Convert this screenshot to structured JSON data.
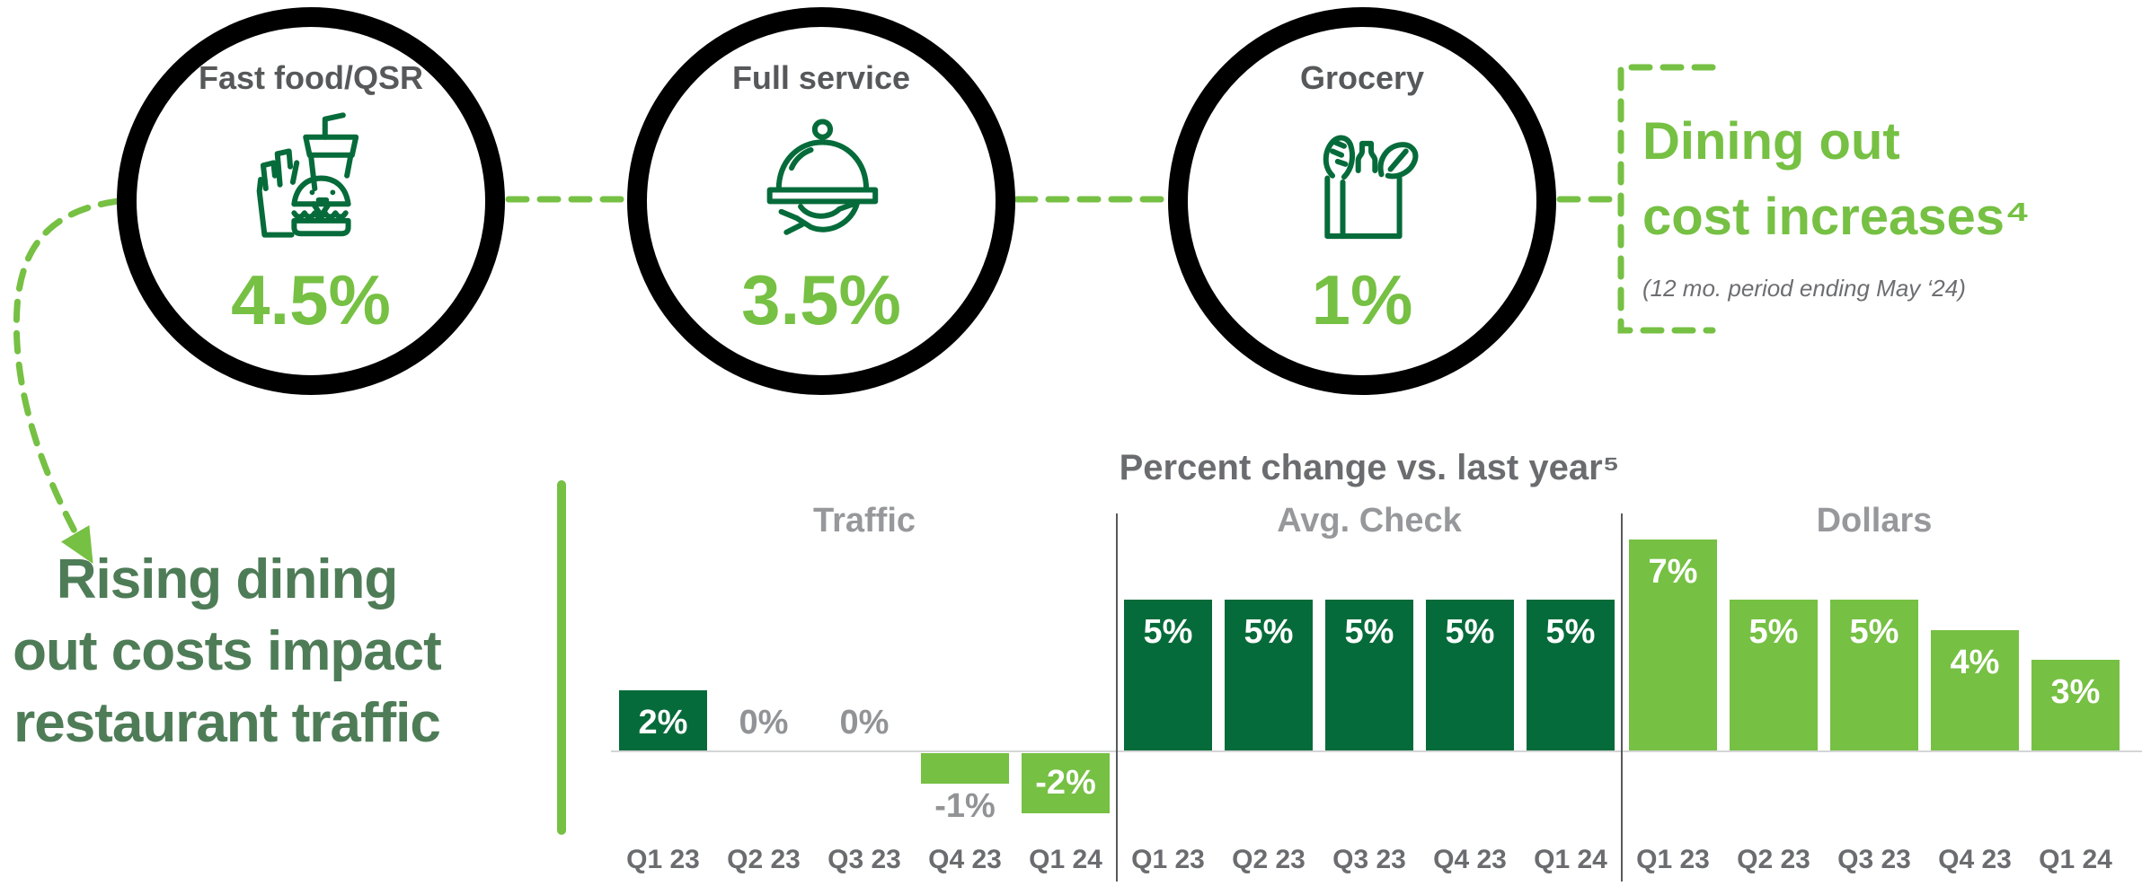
{
  "header": {
    "categories": [
      {
        "label": "Fast food/QSR",
        "icon": "fast-food-icon",
        "value": "4.5%"
      },
      {
        "label": "Full service",
        "icon": "cloche-icon",
        "value": "3.5%"
      },
      {
        "label": "Grocery",
        "icon": "grocery-bag-icon",
        "value": "1%"
      }
    ],
    "callout": {
      "line1": "Dining out",
      "line2": "cost increases⁴",
      "subtitle": "(12 mo. period ending May ‘24)"
    }
  },
  "headline": {
    "lines": [
      "Rising dining",
      "out costs impact",
      "restaurant traffic"
    ]
  },
  "chart_data": {
    "type": "bar",
    "title": "Percent change vs. last year⁵",
    "ylabel": "percent change",
    "ylim": [
      -3,
      8
    ],
    "gridlines": false,
    "legend": "none",
    "categories": [
      "Q1 23",
      "Q2 23",
      "Q3 23",
      "Q4 23",
      "Q1 24"
    ],
    "groups": [
      {
        "name": "Traffic",
        "series": [
          {
            "q": "Q1 23",
            "value": 2,
            "label": "2%",
            "color": "dark",
            "label_style": "inside-white"
          },
          {
            "q": "Q2 23",
            "value": 0,
            "label": "0%",
            "color": "none",
            "label_style": "zero-gray"
          },
          {
            "q": "Q3 23",
            "value": 0,
            "label": "0%",
            "color": "none",
            "label_style": "zero-gray"
          },
          {
            "q": "Q4 23",
            "value": -1,
            "label": "-1%",
            "color": "light",
            "label_style": "below-gray"
          },
          {
            "q": "Q1 24",
            "value": -2,
            "label": "-2%",
            "color": "light",
            "label_style": "inside-white"
          }
        ]
      },
      {
        "name": "Avg. Check",
        "series": [
          {
            "q": "Q1 23",
            "value": 5,
            "label": "5%",
            "color": "dark",
            "label_style": "inside-white"
          },
          {
            "q": "Q2 23",
            "value": 5,
            "label": "5%",
            "color": "dark",
            "label_style": "inside-white"
          },
          {
            "q": "Q3 23",
            "value": 5,
            "label": "5%",
            "color": "dark",
            "label_style": "inside-white"
          },
          {
            "q": "Q4 23",
            "value": 5,
            "label": "5%",
            "color": "dark",
            "label_style": "inside-white"
          },
          {
            "q": "Q1 24",
            "value": 5,
            "label": "5%",
            "color": "dark",
            "label_style": "inside-white"
          }
        ]
      },
      {
        "name": "Dollars",
        "series": [
          {
            "q": "Q1 23",
            "value": 7,
            "label": "7%",
            "color": "light",
            "label_style": "inside-white"
          },
          {
            "q": "Q2 23",
            "value": 5,
            "label": "5%",
            "color": "light",
            "label_style": "inside-white"
          },
          {
            "q": "Q3 23",
            "value": 5,
            "label": "5%",
            "color": "light",
            "label_style": "inside-white"
          },
          {
            "q": "Q4 23",
            "value": 4,
            "label": "4%",
            "color": "light",
            "label_style": "inside-white"
          },
          {
            "q": "Q1 24",
            "value": 3,
            "label": "3%",
            "color": "light",
            "label_style": "inside-white"
          }
        ]
      }
    ],
    "colors": {
      "dark": "#066b3a",
      "light": "#76c043"
    }
  }
}
